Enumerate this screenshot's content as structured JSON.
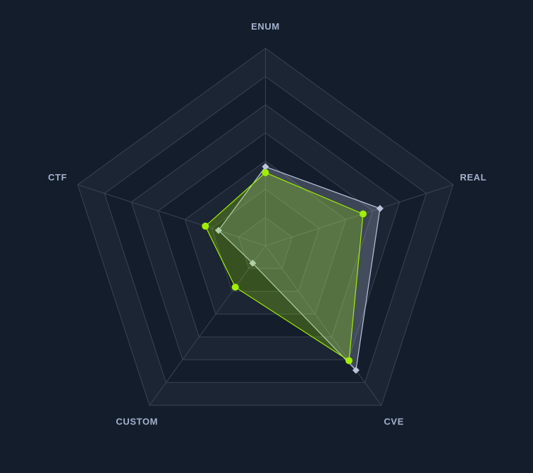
{
  "chart_data": {
    "type": "radar",
    "axes": [
      "ENUM",
      "REAL",
      "CVE",
      "CUSTOM",
      "CTF"
    ],
    "range": [
      0,
      100
    ],
    "rings": 7,
    "series": [
      {
        "values": [
          40,
          61,
          78,
          11,
          25
        ],
        "color": "#b9c4dc",
        "marker": "diamond"
      },
      {
        "values": [
          37,
          52,
          72,
          26,
          32
        ],
        "color": "#9fef00",
        "marker": "circle"
      }
    ]
  },
  "colors": {
    "background": "#141d2b",
    "ring_fill_a": "#1c2533",
    "ring_fill_b": "#141d2b",
    "grid_line": "#3a4352",
    "axis_label": "#a4b1cd"
  }
}
